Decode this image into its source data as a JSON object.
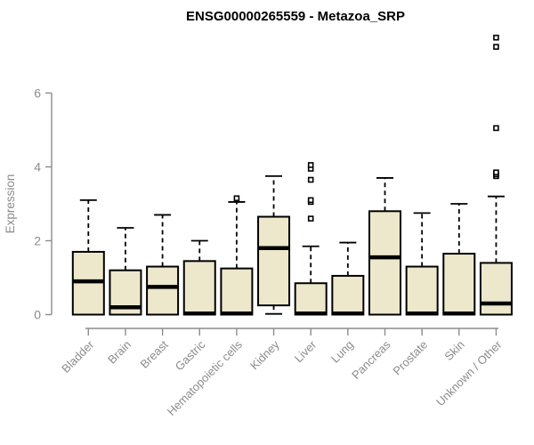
{
  "chart_data": {
    "type": "boxplot",
    "title": "ENSG00000265559 - Metazoa_SRP",
    "ylabel": "Expression",
    "xlabel": "",
    "ylim": [
      0,
      6
    ],
    "yticks": [
      0,
      2,
      4,
      6
    ],
    "grid": false,
    "legend": "none",
    "categories": [
      "Bladder",
      "Brain",
      "Breast",
      "Gastric",
      "Hematopoietic cells",
      "Kidney",
      "Liver",
      "Lung",
      "Pancreas",
      "Prostate",
      "Skin",
      "Unknown / Other"
    ],
    "series": [
      {
        "name": "Bladder",
        "whisker_low": 0,
        "q1": 0,
        "median": 0.9,
        "q3": 1.7,
        "whisker_high": 3.1,
        "outliers": []
      },
      {
        "name": "Brain",
        "whisker_low": 0,
        "q1": 0,
        "median": 0.2,
        "q3": 1.2,
        "whisker_high": 2.35,
        "outliers": []
      },
      {
        "name": "Breast",
        "whisker_low": 0,
        "q1": 0,
        "median": 0.75,
        "q3": 1.3,
        "whisker_high": 2.7,
        "outliers": []
      },
      {
        "name": "Gastric",
        "whisker_low": 0,
        "q1": 0,
        "median": 0.03,
        "q3": 1.45,
        "whisker_high": 2.0,
        "outliers": []
      },
      {
        "name": "Hematopoietic cells",
        "whisker_low": 0,
        "q1": 0,
        "median": 0.03,
        "q3": 1.25,
        "whisker_high": 3.05,
        "outliers": [
          3.15
        ]
      },
      {
        "name": "Kidney",
        "whisker_low": 0.02,
        "q1": 0.25,
        "median": 1.8,
        "q3": 2.65,
        "whisker_high": 3.75,
        "outliers": []
      },
      {
        "name": "Liver",
        "whisker_low": 0,
        "q1": 0,
        "median": 0.03,
        "q3": 0.85,
        "whisker_high": 1.85,
        "outliers": [
          2.6,
          3.05,
          3.1,
          3.65,
          3.95,
          4.05
        ]
      },
      {
        "name": "Lung",
        "whisker_low": 0,
        "q1": 0,
        "median": 0.03,
        "q3": 1.05,
        "whisker_high": 1.95,
        "outliers": []
      },
      {
        "name": "Pancreas",
        "whisker_low": 0,
        "q1": 0,
        "median": 1.55,
        "q3": 2.8,
        "whisker_high": 3.7,
        "outliers": []
      },
      {
        "name": "Prostate",
        "whisker_low": 0,
        "q1": 0,
        "median": 0.03,
        "q3": 1.3,
        "whisker_high": 2.75,
        "outliers": []
      },
      {
        "name": "Skin",
        "whisker_low": 0,
        "q1": 0,
        "median": 0.03,
        "q3": 1.65,
        "whisker_high": 3.0,
        "outliers": []
      },
      {
        "name": "Unknown / Other",
        "whisker_low": 0,
        "q1": 0,
        "median": 0.3,
        "q3": 1.4,
        "whisker_high": 3.2,
        "outliers": [
          3.75,
          3.8,
          3.85,
          5.05,
          7.25,
          7.5
        ]
      }
    ]
  },
  "colors": {
    "box_fill": "#EDE7CC",
    "box_border": "#000000",
    "median": "#000000",
    "whisker": "#000000",
    "outlier": "#000000",
    "axis": "#8C8C8C",
    "tick_label": "#8C8C8C",
    "title": "#000000"
  }
}
